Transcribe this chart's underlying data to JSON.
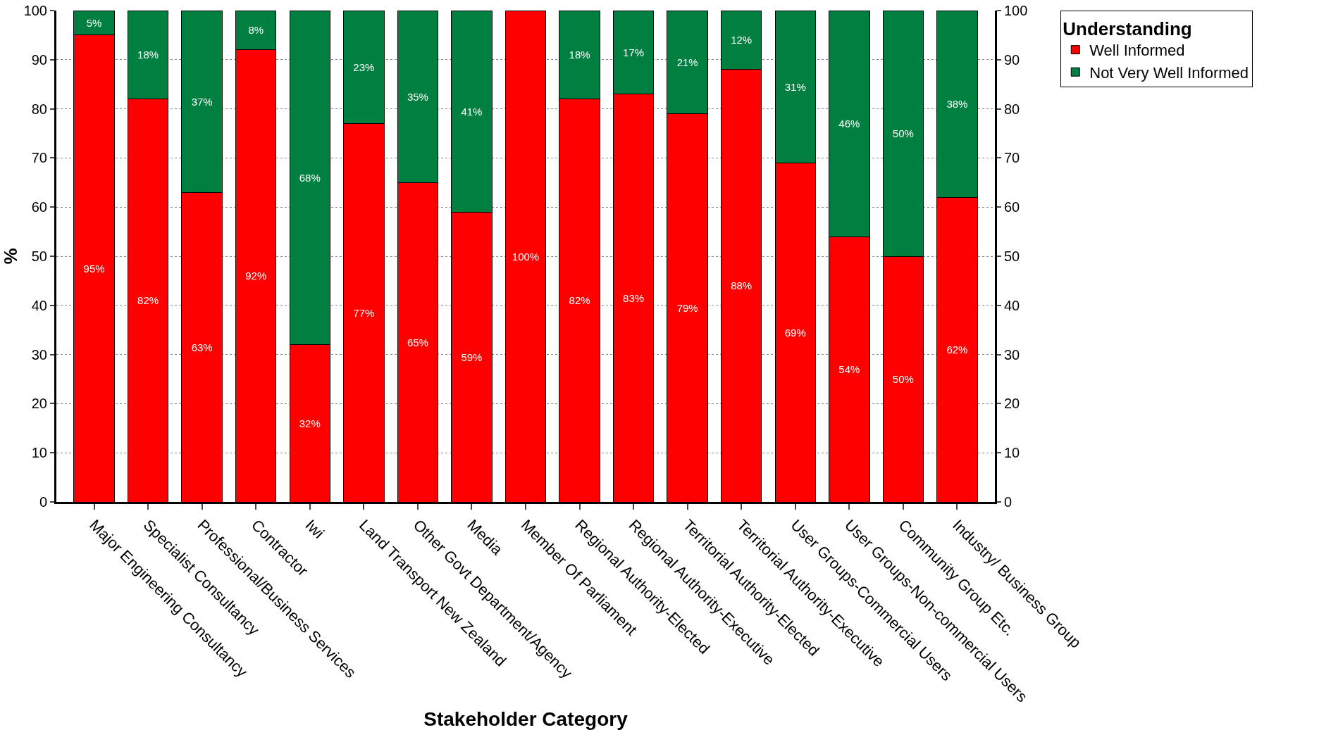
{
  "chart_data": {
    "type": "bar",
    "stacked": true,
    "xlabel": "Stakeholder Category",
    "ylabel": "%",
    "legend_title": "Understanding",
    "categories": [
      "Major Engineering Consultancy",
      "Specialist Consultancy",
      "Professional/Business Services",
      "Contractor",
      "Iwi",
      "Land Transport New Zealand",
      "Other Govt Department/Agency",
      "Media",
      "Member Of Parliament",
      "Regional Authority-Elected",
      "Regional Authority-Executive",
      "Territorial Authority-Elected",
      "Territorial Authority-Executive",
      "User Groups-Commercial Users",
      "User Groups-Non-commercial Users",
      "Community Group Etc.",
      "Industry/ Business Group"
    ],
    "series": [
      {
        "name": "Well Informed",
        "color": "#ff0000",
        "values": [
          95,
          82,
          63,
          92,
          32,
          77,
          65,
          59,
          100,
          82,
          83,
          79,
          88,
          69,
          54,
          50,
          62
        ],
        "value_labels": [
          "95%",
          "82%",
          "63%",
          "92%",
          "32%",
          "77%",
          "65%",
          "59%",
          "100%",
          "82%",
          "83%",
          "79%",
          "88%",
          "69%",
          "54%",
          "50%",
          "62%"
        ]
      },
      {
        "name": "Not Very Well Informed",
        "color": "#008040",
        "values": [
          5,
          18,
          37,
          8,
          68,
          23,
          35,
          41,
          null,
          18,
          17,
          21,
          12,
          31,
          46,
          50,
          38
        ],
        "value_labels": [
          "5%",
          "18%",
          "37%",
          "8%",
          "68%",
          "23%",
          "35%",
          "41%",
          null,
          "18%",
          "17%",
          "21%",
          "12%",
          "31%",
          "46%",
          "50%",
          "38%"
        ]
      }
    ],
    "ylim": [
      0,
      100
    ],
    "yticks": [
      0,
      10,
      20,
      30,
      40,
      50,
      60,
      70,
      80,
      90,
      100
    ],
    "y2lim": [
      0,
      100
    ],
    "y2ticks": [
      0,
      10,
      20,
      30,
      40,
      50,
      60,
      70,
      80,
      90,
      100
    ],
    "grid": "y",
    "legend": "top right"
  }
}
